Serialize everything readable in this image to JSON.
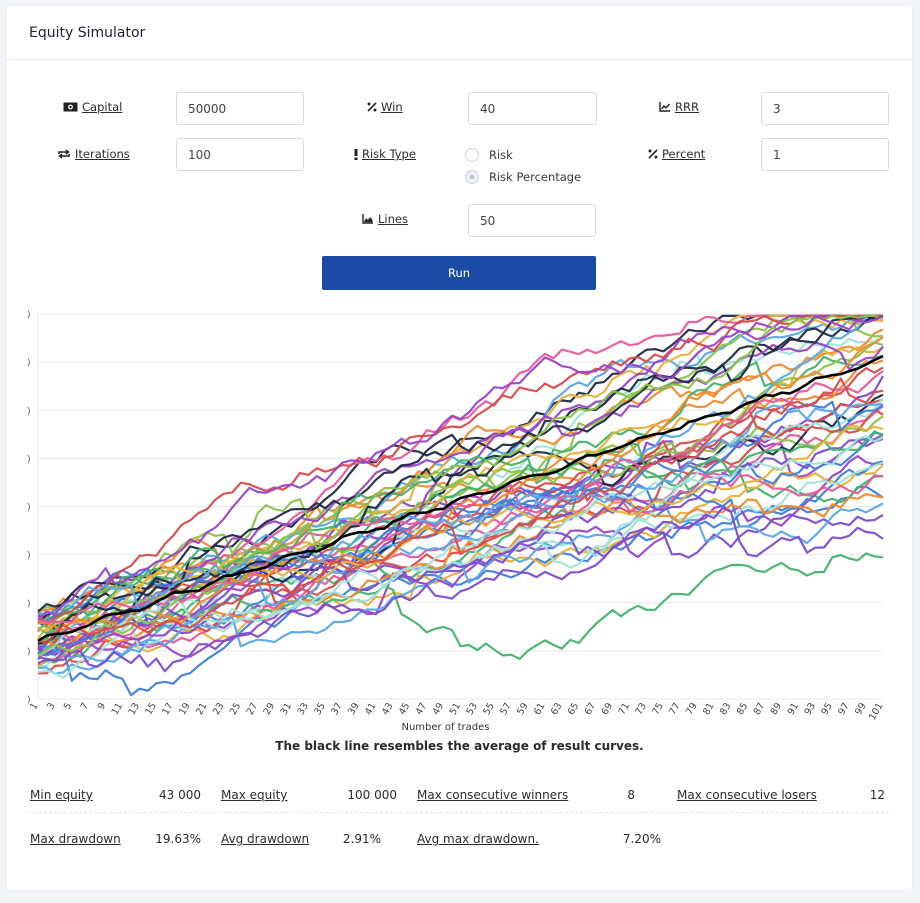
{
  "header": {
    "title": "Equity Simulator"
  },
  "form": {
    "capital": {
      "label": "Capital",
      "value": "50000",
      "icon": "money-icon"
    },
    "win": {
      "label": "Win",
      "value": "40",
      "icon": "percent-icon"
    },
    "rrr": {
      "label": "RRR",
      "value": "3",
      "icon": "line-chart-icon"
    },
    "iterations": {
      "label": "Iterations",
      "value": "100",
      "icon": "repeat-icon"
    },
    "risk_type": {
      "label": "Risk Type",
      "icon": "exclamation-icon",
      "options": [
        "Risk",
        "Risk Percentage"
      ],
      "selected": "Risk Percentage"
    },
    "percent": {
      "label": "Percent",
      "value": "1",
      "icon": "percent-icon"
    },
    "lines": {
      "label": "Lines",
      "value": "50",
      "icon": "area-chart-icon"
    },
    "run_label": "Run"
  },
  "chart_data": {
    "type": "line",
    "xlabel": "Number of trades",
    "x_start": 1,
    "x_end": 101,
    "x_tick_labels": [
      "1",
      "3",
      "5",
      "7",
      "9",
      "11",
      "13",
      "15",
      "17",
      "19",
      "21",
      "23",
      "25",
      "27",
      "29",
      "31",
      "33",
      "35",
      "37",
      "39",
      "41",
      "43",
      "45",
      "47",
      "49",
      "51",
      "53",
      "55",
      "57",
      "59",
      "61",
      "63",
      "65",
      "67",
      "69",
      "71",
      "73",
      "75",
      "77",
      "79",
      "81",
      "83",
      "85",
      "87",
      "89",
      "91",
      "93",
      "95",
      "97",
      "99",
      "101"
    ],
    "ylim": [
      40000,
      100000
    ],
    "series_count": 50,
    "average_series": {
      "color": "#000000",
      "start": 49000,
      "end": 93000
    },
    "palette": [
      "#d84b4b",
      "#9b45c8",
      "#3f7fd9",
      "#45b36b",
      "#e6b23a",
      "#f08a2e",
      "#a0e3d8",
      "#1f2a44",
      "#e85a9a",
      "#7c4dcf",
      "#8bc34a",
      "#5aa9e6"
    ],
    "caption": "The black line resembles the average of result curves."
  },
  "stats": {
    "row1": [
      {
        "label": "Min equity",
        "value": "43 000"
      },
      {
        "label": "Max equity",
        "value": "100 000"
      },
      {
        "label": "Max consecutive winners",
        "value": "8"
      },
      {
        "label": "Max consecutive losers",
        "value": "12"
      }
    ],
    "row2": [
      {
        "label": "Max drawdown",
        "value": "19.63%"
      },
      {
        "label": "Avg drawdown",
        "value": "2.91%"
      },
      {
        "label": "Avg max drawdown.",
        "value": "7.20%"
      }
    ]
  }
}
